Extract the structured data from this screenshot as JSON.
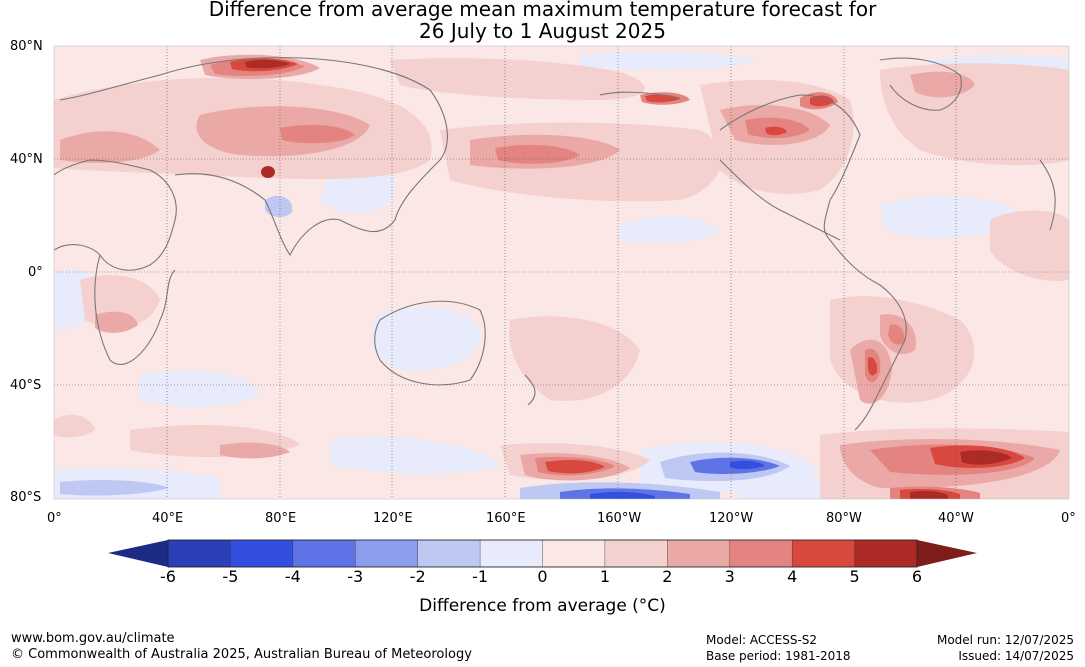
{
  "title": {
    "line1": "Difference from average mean maximum temperature forecast for",
    "line2": "26 July to 1 August 2025"
  },
  "lat_labels": [
    "80°N",
    "40°N",
    "0°",
    "40°S",
    "80°S"
  ],
  "lon_labels": [
    "0°",
    "40°E",
    "80°E",
    "120°E",
    "160°E",
    "160°W",
    "120°W",
    "80°W",
    "40°W",
    "0°"
  ],
  "colorbar": {
    "ticks": [
      "-6",
      "-5",
      "-4",
      "-3",
      "-2",
      "-1",
      "0",
      "1",
      "2",
      "3",
      "4",
      "5",
      "6"
    ],
    "colors": [
      "#1e2b86",
      "#2a3fb8",
      "#334fe0",
      "#5d73e6",
      "#8d9ded",
      "#bfc8f3",
      "#e7ebfb",
      "#fbe8e6",
      "#f4d0ce",
      "#eaa9a6",
      "#e48480",
      "#d9483f",
      "#ad2b26",
      "#7e1e1a"
    ],
    "label": "Difference from average (°C)"
  },
  "footer": {
    "url": "www.bom.gov.au/climate",
    "copyright": "© Commonwealth of Australia 2025, Australian Bureau of Meteorology",
    "model": "Model: ACCESS-S2",
    "base_period": "Base period: 1981-2018",
    "model_run": "Model run: 12/07/2025",
    "issued": "Issued: 14/07/2025"
  }
}
